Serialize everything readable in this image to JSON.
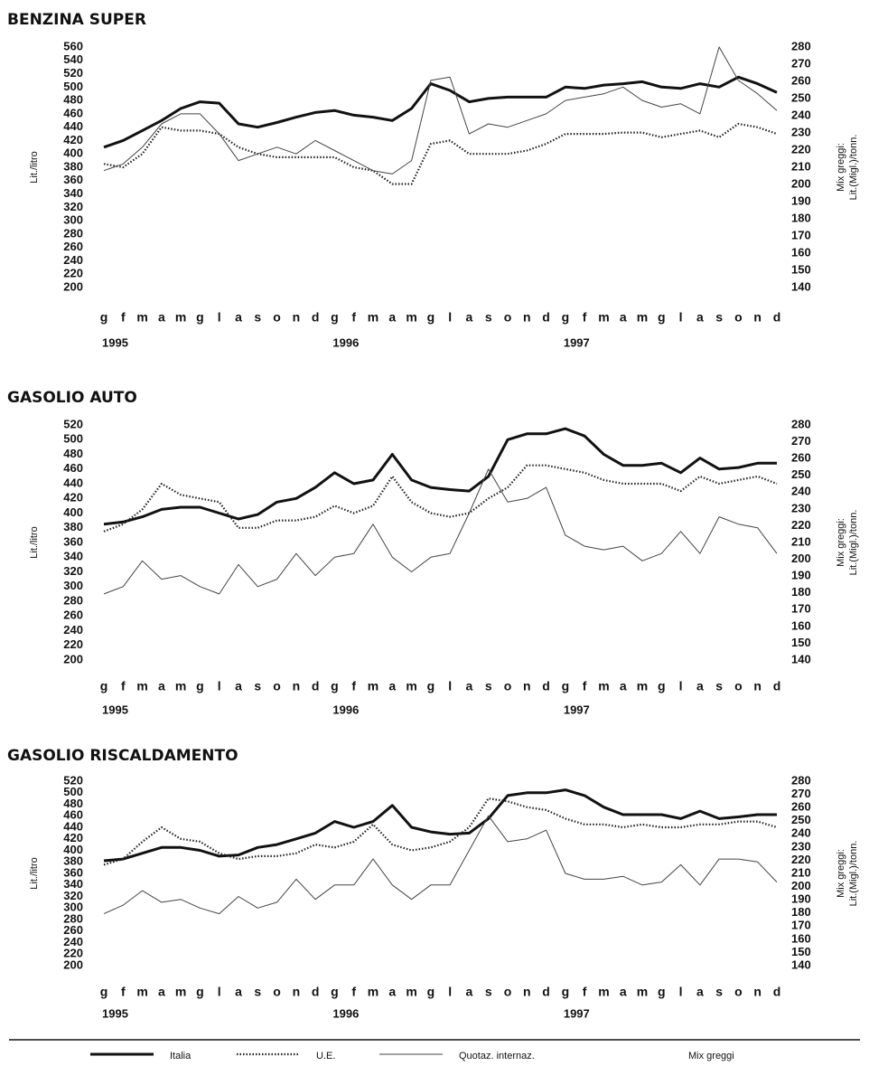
{
  "chart_data": [
    {
      "type": "line",
      "title": "BENZINA SUPER",
      "ylabel": "Lit./litro",
      "y2label": [
        "Mix greggi:",
        "Lit.(Migl.)/tonn."
      ],
      "categories": [
        "g",
        "f",
        "m",
        "a",
        "m",
        "g",
        "l",
        "a",
        "s",
        "o",
        "n",
        "d",
        "g",
        "f",
        "m",
        "a",
        "m",
        "g",
        "l",
        "a",
        "s",
        "o",
        "n",
        "d",
        "g",
        "f",
        "m",
        "a",
        "m",
        "g",
        "l",
        "a",
        "s",
        "o",
        "n",
        "d"
      ],
      "years": [
        "1995",
        "1996",
        "1997"
      ],
      "ylim": [
        200,
        560
      ],
      "yticks": [
        200,
        220,
        240,
        260,
        280,
        300,
        320,
        340,
        360,
        380,
        400,
        420,
        440,
        460,
        480,
        500,
        520,
        540,
        560
      ],
      "y2lim": [
        140,
        280
      ],
      "y2ticks": [
        140,
        150,
        160,
        170,
        180,
        190,
        200,
        210,
        220,
        230,
        240,
        250,
        260,
        270,
        280
      ],
      "series": [
        {
          "name": "Italia",
          "color": "#111111",
          "line_style": "thick",
          "values": [
            410,
            420,
            435,
            450,
            468,
            478,
            476,
            445,
            440,
            447,
            455,
            462,
            465,
            458,
            455,
            450,
            468,
            505,
            495,
            478,
            483,
            485,
            485,
            485,
            500,
            498,
            503,
            505,
            508,
            500,
            498,
            505,
            500,
            515,
            505,
            492
          ]
        },
        {
          "name": "U.E.",
          "color": "#222222",
          "line_style": "dotted",
          "values": [
            385,
            380,
            400,
            440,
            435,
            435,
            430,
            410,
            400,
            395,
            395,
            395,
            395,
            380,
            375,
            355,
            355,
            415,
            420,
            400,
            400,
            400,
            405,
            415,
            430,
            430,
            430,
            432,
            432,
            425,
            430,
            435,
            425,
            445,
            440,
            430
          ]
        },
        {
          "name": "Quotaz. internaz.",
          "color": "#444444",
          "line_style": "thin",
          "values": [
            375,
            385,
            410,
            445,
            460,
            460,
            430,
            390,
            400,
            410,
            400,
            420,
            405,
            390,
            375,
            370,
            390,
            510,
            515,
            430,
            445,
            440,
            450,
            460,
            480,
            485,
            490,
            500,
            480,
            470,
            475,
            460,
            560,
            510,
            490,
            465
          ]
        }
      ]
    },
    {
      "type": "line",
      "title": "GASOLIO AUTO",
      "ylabel": "Lit./litro",
      "y2label": [
        "Mix greggi:",
        "Lit.(Migl.)/tonn."
      ],
      "categories": [
        "g",
        "f",
        "m",
        "a",
        "m",
        "g",
        "l",
        "a",
        "s",
        "o",
        "n",
        "d",
        "g",
        "f",
        "m",
        "a",
        "m",
        "g",
        "l",
        "a",
        "s",
        "o",
        "n",
        "d",
        "g",
        "f",
        "m",
        "a",
        "m",
        "g",
        "l",
        "a",
        "s",
        "o",
        "n",
        "d"
      ],
      "years": [
        "1995",
        "1996",
        "1997"
      ],
      "ylim": [
        200,
        520
      ],
      "yticks": [
        200,
        220,
        240,
        260,
        280,
        300,
        320,
        340,
        360,
        380,
        400,
        420,
        440,
        460,
        480,
        500,
        520
      ],
      "y2lim": [
        140,
        280
      ],
      "y2ticks": [
        140,
        150,
        160,
        170,
        180,
        190,
        200,
        210,
        220,
        230,
        240,
        250,
        260,
        270,
        280
      ],
      "series": [
        {
          "name": "Italia",
          "color": "#111111",
          "line_style": "thick",
          "values": [
            385,
            388,
            395,
            405,
            408,
            408,
            400,
            392,
            398,
            415,
            420,
            435,
            455,
            440,
            445,
            480,
            445,
            435,
            432,
            430,
            450,
            500,
            508,
            508,
            515,
            505,
            480,
            465,
            465,
            468,
            455,
            475,
            460,
            462,
            468,
            468
          ]
        },
        {
          "name": "U.E.",
          "color": "#222222",
          "line_style": "dotted",
          "values": [
            375,
            385,
            405,
            440,
            425,
            420,
            415,
            380,
            380,
            390,
            390,
            395,
            410,
            400,
            410,
            450,
            415,
            400,
            395,
            400,
            420,
            435,
            465,
            465,
            460,
            455,
            445,
            440,
            440,
            440,
            430,
            450,
            440,
            445,
            450,
            440
          ]
        },
        {
          "name": "Quotaz. internaz.",
          "color": "#444444",
          "line_style": "thin",
          "values": [
            290,
            300,
            335,
            310,
            315,
            300,
            290,
            330,
            300,
            310,
            345,
            315,
            340,
            345,
            385,
            340,
            320,
            340,
            345,
            400,
            460,
            415,
            420,
            435,
            370,
            355,
            350,
            355,
            335,
            345,
            375,
            345,
            395,
            385,
            380,
            345
          ]
        }
      ]
    },
    {
      "type": "line",
      "title": "GASOLIO RISCALDAMENTO",
      "ylabel": "Lit./litro",
      "y2label": [
        "Mix greggi:",
        "Lit.(Migl.)/tonn."
      ],
      "categories": [
        "g",
        "f",
        "m",
        "a",
        "m",
        "g",
        "l",
        "a",
        "s",
        "o",
        "n",
        "d",
        "g",
        "f",
        "m",
        "a",
        "m",
        "g",
        "l",
        "a",
        "s",
        "o",
        "n",
        "d",
        "g",
        "f",
        "m",
        "a",
        "m",
        "g",
        "l",
        "a",
        "s",
        "o",
        "n",
        "d"
      ],
      "years": [
        "1995",
        "1996",
        "1997"
      ],
      "ylim": [
        200,
        520
      ],
      "yticks": [
        200,
        220,
        240,
        260,
        280,
        300,
        320,
        340,
        360,
        380,
        400,
        420,
        440,
        460,
        480,
        500,
        520
      ],
      "y2lim": [
        140,
        280
      ],
      "y2ticks": [
        140,
        150,
        160,
        170,
        180,
        190,
        200,
        210,
        220,
        230,
        240,
        250,
        260,
        270,
        280
      ],
      "series": [
        {
          "name": "Italia",
          "color": "#111111",
          "line_style": "thick",
          "values": [
            382,
            385,
            395,
            405,
            405,
            400,
            390,
            392,
            405,
            410,
            420,
            430,
            450,
            440,
            450,
            478,
            440,
            432,
            428,
            430,
            455,
            495,
            500,
            500,
            505,
            495,
            475,
            462,
            462,
            462,
            455,
            468,
            455,
            458,
            462,
            462
          ]
        },
        {
          "name": "U.E.",
          "color": "#222222",
          "line_style": "dotted",
          "values": [
            375,
            385,
            415,
            440,
            420,
            415,
            395,
            385,
            390,
            390,
            395,
            410,
            405,
            415,
            445,
            410,
            400,
            405,
            415,
            440,
            490,
            485,
            475,
            470,
            455,
            445,
            445,
            440,
            445,
            440,
            440,
            445,
            445,
            450,
            450,
            440
          ]
        },
        {
          "name": "Quotaz. internaz.",
          "color": "#444444",
          "line_style": "thin",
          "values": [
            290,
            305,
            330,
            310,
            315,
            300,
            290,
            320,
            300,
            310,
            350,
            315,
            340,
            340,
            385,
            340,
            315,
            340,
            340,
            400,
            460,
            415,
            420,
            435,
            360,
            350,
            350,
            355,
            340,
            345,
            375,
            340,
            385,
            385,
            380,
            345
          ]
        }
      ]
    }
  ],
  "legend_note": "Mix greggi"
}
